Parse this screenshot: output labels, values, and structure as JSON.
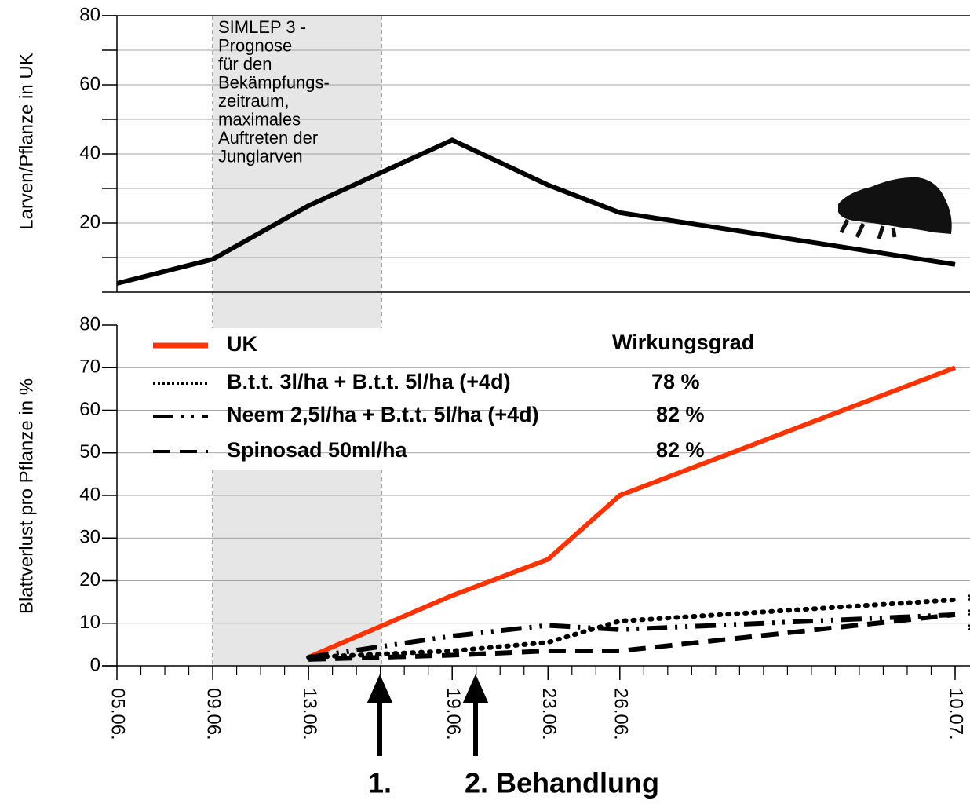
{
  "chart_data": [
    {
      "type": "line",
      "ylabel": "Larven/Pflanze in UK",
      "x": [
        "05.06.",
        "09.06.",
        "13.06.",
        "19.06.",
        "23.06.",
        "26.06.",
        "10.07."
      ],
      "xlim": [
        "05.06.",
        "10.07."
      ],
      "series": [
        {
          "name": "UK",
          "color": "#000000",
          "style": "solid",
          "values": [
            2.5,
            9.5,
            25,
            44,
            31,
            23,
            8
          ]
        }
      ],
      "ylim": [
        0,
        80
      ],
      "yticks": [
        20,
        40,
        60,
        80
      ],
      "minor_yticks": [
        10,
        30,
        50,
        70
      ],
      "grid": true,
      "annotation": [
        "SIMLEP 3 -",
        "Prognose",
        "für den",
        "Bekämpfungs-",
        "zeitraum,",
        "maximales",
        "Auftreten der",
        "Junglarven"
      ]
    },
    {
      "type": "line",
      "ylabel": "Blattverlust pro Pflanze in %",
      "x": [
        "05.06.",
        "09.06.",
        "13.06.",
        "19.06.",
        "23.06.",
        "26.06.",
        "10.07."
      ],
      "xticks": [
        "05.06.",
        "09.06.",
        "13.06.",
        "19.06.",
        "23.06.",
        "26.06.",
        "10.07."
      ],
      "xlim": [
        "05.06.",
        "10.07."
      ],
      "legend_title": "Wirkungsgrad",
      "series": [
        {
          "name": "UK",
          "color": "#ff3300",
          "style": "solid",
          "values": [
            null,
            null,
            2,
            16.5,
            25,
            40,
            70
          ]
        },
        {
          "name": "B.t.t. 3l/ha + B.t.t. 5l/ha (+4d)",
          "color": "#000000",
          "style": "dotted",
          "wirkungsgrad": "78 %",
          "values": [
            null,
            null,
            2,
            3.5,
            5.5,
            10.5,
            15.5
          ]
        },
        {
          "name": "Neem 2,5l/ha + B.t.t. 5l/ha (+4d)",
          "color": "#000000",
          "style": "dashdot",
          "wirkungsgrad": "82 %",
          "values": [
            null,
            null,
            2,
            7,
            9.5,
            8.5,
            12
          ]
        },
        {
          "name": "Spinosad 50ml/ha",
          "color": "#000000",
          "style": "dashed",
          "wirkungsgrad": "82 %",
          "values": [
            null,
            null,
            1.5,
            2.5,
            3.5,
            3.5,
            12
          ]
        }
      ],
      "ylim": [
        0,
        80
      ],
      "yticks": [
        0,
        10,
        20,
        30,
        40,
        50,
        60,
        70,
        80
      ],
      "grid": true,
      "stars": [
        "*",
        "*",
        "*"
      ]
    }
  ],
  "treatments": [
    "1.",
    "2. Behandlung"
  ]
}
